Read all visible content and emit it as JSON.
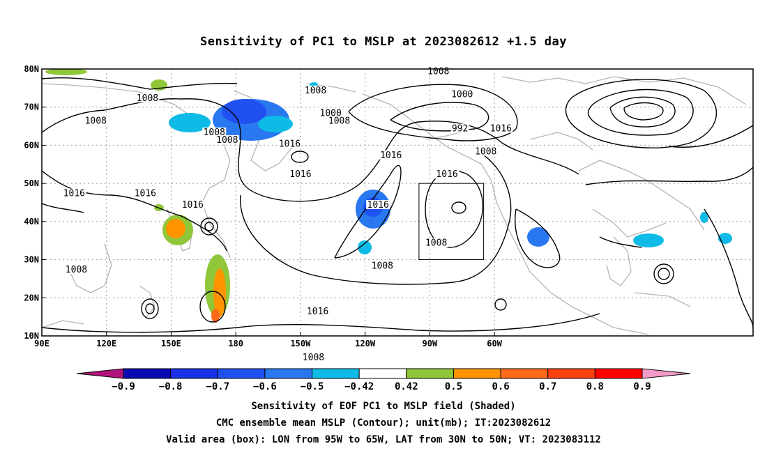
{
  "title": "Sensitivity of PC1 to MSLP at 2023082612 +1.5 day",
  "lat_labels": [
    "80N",
    "70N",
    "60N",
    "50N",
    "40N",
    "30N",
    "20N",
    "10N"
  ],
  "lon_labels": [
    "90E",
    "120E",
    "150E",
    "180",
    "150W",
    "120W",
    "90W",
    "60W"
  ],
  "contour_labels": [
    {
      "text": "1008",
      "lon": 139,
      "lat": 72
    },
    {
      "text": "1008",
      "lon": 115,
      "lat": 66
    },
    {
      "text": "1016",
      "lon": 105,
      "lat": 47
    },
    {
      "text": "1016",
      "lon": 138,
      "lat": 47
    },
    {
      "text": "1016",
      "lon": 160,
      "lat": 44
    },
    {
      "text": "1008",
      "lon": 106,
      "lat": 27
    },
    {
      "text": "1008",
      "lon": 170,
      "lat": 63
    },
    {
      "text": "1008",
      "lon": 176,
      "lat": 61
    },
    {
      "text": "1008",
      "lon": -143,
      "lat": 74
    },
    {
      "text": "1000",
      "lon": -136,
      "lat": 68
    },
    {
      "text": "1008",
      "lon": -132,
      "lat": 66
    },
    {
      "text": "1016",
      "lon": -155,
      "lat": 60
    },
    {
      "text": "1016",
      "lon": -150,
      "lat": 52
    },
    {
      "text": "1016",
      "lon": -108,
      "lat": 57
    },
    {
      "text": "1016",
      "lon": -114,
      "lat": 44
    },
    {
      "text": "1016",
      "lon": -142,
      "lat": 16
    },
    {
      "text": "1008",
      "lon": -144,
      "lat": 4
    },
    {
      "text": "1008",
      "lon": -112,
      "lat": 28
    },
    {
      "text": "1008",
      "lon": -87,
      "lat": 34
    },
    {
      "text": "1008",
      "lon": -86,
      "lat": 79
    },
    {
      "text": "1000",
      "lon": -75,
      "lat": 73
    },
    {
      "text": "992",
      "lon": -76,
      "lat": 64
    },
    {
      "text": "1008",
      "lon": -64,
      "lat": 58
    },
    {
      "text": "1016",
      "lon": -57,
      "lat": 64
    },
    {
      "text": "1016",
      "lon": -82,
      "lat": 52
    }
  ],
  "colorbar": {
    "labels": [
      "-0.9",
      "-0.8",
      "-0.7",
      "-0.6",
      "-0.5",
      "-0.42",
      "0.42",
      "0.5",
      "0.6",
      "0.7",
      "0.8",
      "0.9"
    ],
    "colors": [
      "#0a0ab4",
      "#1a32e6",
      "#2050f0",
      "#2a78f0",
      "#0ebbe6",
      "#ffffff",
      "#90c63a",
      "#ff9400",
      "#ff6a1a",
      "#ff4010",
      "#ff0000"
    ],
    "low_color": "#b0127c",
    "high_color": "#f49ac8"
  },
  "box": {
    "lon_from": -95,
    "lon_to": -65,
    "lat_from": 30,
    "lat_to": 50
  },
  "caption": [
    "Sensitivity of EOF PC1 to MSLP field (Shaded)",
    "CMC ensemble mean MSLP (Contour); unit(mb); IT:2023082612",
    "Valid area (box): LON from 95W to 65W, LAT from 30N to 50N; VT: 2023083112"
  ]
}
